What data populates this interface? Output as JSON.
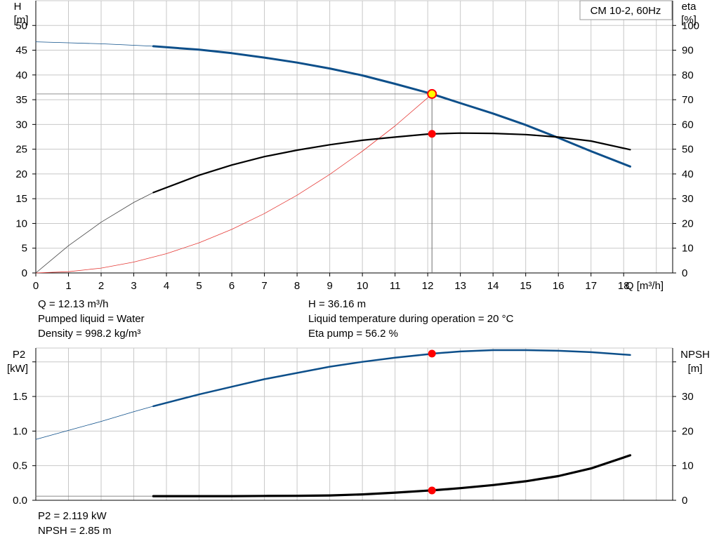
{
  "chart_data": [
    {
      "type": "line",
      "pump_label": "CM 10-2, 60Hz",
      "xlabel": "Q [m³/h]",
      "ylabel_left": [
        "H",
        "[m]"
      ],
      "ylabel_right": [
        "eta",
        "[%]"
      ],
      "xlim": [
        0,
        19.5
      ],
      "ylim_left": [
        0,
        55
      ],
      "ylim_right": [
        0,
        110
      ],
      "x_ticks": [
        0,
        1,
        2,
        3,
        4,
        5,
        6,
        7,
        8,
        9,
        10,
        11,
        12,
        13,
        14,
        15,
        16,
        17,
        18
      ],
      "y_ticks_left": [
        0,
        5,
        10,
        15,
        20,
        25,
        30,
        35,
        40,
        45,
        50
      ],
      "y_ticks_right": [
        0,
        10,
        20,
        30,
        40,
        50,
        60,
        70,
        80,
        90,
        100
      ],
      "grid": true,
      "series": [
        {
          "axis": "left",
          "color": "#0d4f8a",
          "thin_x": [
            0,
            1,
            2,
            3,
            3.6
          ],
          "thin_y": [
            46.7,
            46.5,
            46.3,
            46.0,
            45.8
          ],
          "x": [
            3.6,
            5,
            6,
            7,
            8,
            9,
            10,
            11,
            12,
            12.13,
            13,
            14,
            15,
            16,
            17,
            18.2
          ],
          "y": [
            45.8,
            45.1,
            44.4,
            43.5,
            42.5,
            41.3,
            39.9,
            38.2,
            36.4,
            36.16,
            34.3,
            32.2,
            29.9,
            27.3,
            24.6,
            21.5
          ]
        },
        {
          "axis": "right",
          "color": "#000000",
          "thin_x": [
            0,
            1,
            2,
            3,
            3.6
          ],
          "thin_y": [
            0,
            11,
            20.5,
            28.5,
            32.5
          ],
          "x": [
            3.6,
            5,
            6,
            7,
            8,
            9,
            10,
            11,
            12,
            12.13,
            13,
            14,
            15,
            16,
            17,
            18.2
          ],
          "y": [
            32.5,
            39.5,
            43.6,
            47,
            49.6,
            51.8,
            53.6,
            54.9,
            56.1,
            56.2,
            56.5,
            56.4,
            55.9,
            54.9,
            53.3,
            49.8
          ]
        }
      ],
      "system_curve": {
        "color": "#e53935",
        "x": [
          0,
          1,
          2,
          3,
          4,
          5,
          6,
          7,
          8,
          9,
          10,
          11,
          12,
          12.13
        ],
        "y": [
          0,
          0.25,
          0.98,
          2.2,
          3.9,
          6.1,
          8.8,
          12,
          15.7,
          19.9,
          24.6,
          29.7,
          35.4,
          36.16
        ]
      },
      "duty_point": {
        "Q": 12.13,
        "H": 36.16,
        "eta": 56.2
      },
      "info": {
        "left": [
          "Q = 12.13 m³/h",
          "Pumped liquid = Water",
          "Density = 998.2 kg/m³"
        ],
        "right": [
          "H = 36.16 m",
          "Liquid temperature during operation = 20 °C",
          "Eta pump = 56.2 %"
        ]
      }
    },
    {
      "type": "line",
      "ylabel_left": [
        "P2",
        "[kW]"
      ],
      "ylabel_right": [
        "NPSH",
        "[m]"
      ],
      "xlim": [
        0,
        19.5
      ],
      "ylim_left": [
        0,
        2.2
      ],
      "ylim_right": [
        0,
        44
      ],
      "y_ticks_left": [
        0.0,
        0.5,
        1.0,
        1.5,
        2.0
      ],
      "y_ticks_left_labels": [
        "0.0",
        "0.5",
        "1.0",
        "1.5",
        ""
      ],
      "y_ticks_right": [
        0,
        10,
        20,
        30,
        40
      ],
      "y_ticks_right_labels": [
        "0",
        "10",
        "20",
        "30",
        ""
      ],
      "grid": true,
      "series": [
        {
          "axis": "left",
          "color": "#0d4f8a",
          "thin_x": [
            0,
            1,
            2,
            3,
            3.6
          ],
          "thin_y": [
            0.88,
            1.01,
            1.14,
            1.28,
            1.36
          ],
          "x": [
            3.6,
            5,
            6,
            7,
            8,
            9,
            10,
            11,
            12,
            12.13,
            13,
            14,
            15,
            16,
            17,
            18.2
          ],
          "y": [
            1.36,
            1.53,
            1.64,
            1.75,
            1.84,
            1.93,
            2.0,
            2.06,
            2.11,
            2.119,
            2.15,
            2.17,
            2.17,
            2.16,
            2.14,
            2.1
          ]
        },
        {
          "axis": "right",
          "color": "#000000",
          "thin_x": [
            0,
            1,
            2,
            3,
            3.6
          ],
          "thin_y": [
            1.2,
            1.2,
            1.2,
            1.2,
            1.2
          ],
          "x": [
            3.6,
            5,
            6,
            7,
            8,
            9,
            10,
            11,
            12,
            12.13,
            13,
            14,
            15,
            16,
            17,
            18.2
          ],
          "y": [
            1.2,
            1.2,
            1.2,
            1.25,
            1.3,
            1.4,
            1.7,
            2.2,
            2.8,
            2.85,
            3.5,
            4.4,
            5.5,
            7.0,
            9.2,
            13.0
          ]
        }
      ],
      "duty_point": {
        "Q": 12.13,
        "P2": 2.119,
        "NPSH": 2.85
      },
      "info": [
        "P2 = 2.119 kW",
        "NPSH = 2.85 m"
      ]
    }
  ],
  "colors": {
    "grid": "#c8c8c8",
    "head": "#0d4f8a",
    "eta": "#000000",
    "system": "#e53935",
    "marker": "#ff0000",
    "duty_fill": "#ffff00"
  }
}
